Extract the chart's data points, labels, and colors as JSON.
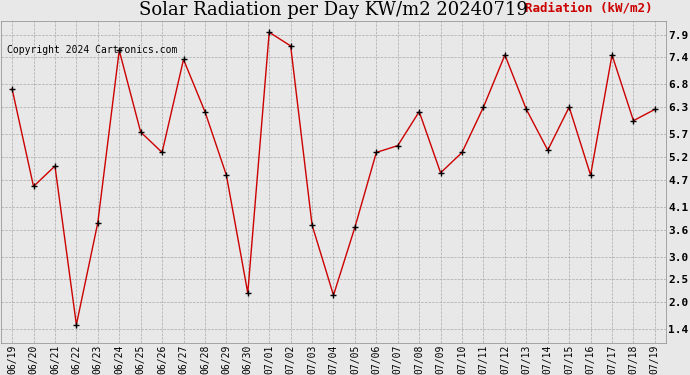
{
  "title": "Solar Radiation per Day KW/m2 20240719",
  "copyright": "Copyright 2024 Cartronics.com",
  "legend_label": "Radiation (kW/m2)",
  "dates": [
    "06/19",
    "06/20",
    "06/21",
    "06/22",
    "06/23",
    "06/24",
    "06/25",
    "06/26",
    "06/27",
    "06/28",
    "06/29",
    "06/30",
    "07/01",
    "07/02",
    "07/03",
    "07/04",
    "07/05",
    "07/06",
    "07/07",
    "07/08",
    "07/09",
    "07/10",
    "07/11",
    "07/12",
    "07/13",
    "07/14",
    "07/15",
    "07/16",
    "07/17",
    "07/18",
    "07/19"
  ],
  "values": [
    6.7,
    4.55,
    5.0,
    1.5,
    3.75,
    7.55,
    5.75,
    5.3,
    7.35,
    6.2,
    4.8,
    2.2,
    7.95,
    7.65,
    3.7,
    2.15,
    3.65,
    5.3,
    5.45,
    6.2,
    4.85,
    5.3,
    6.3,
    7.45,
    6.25,
    5.35,
    6.3,
    4.8,
    7.45,
    6.0,
    6.25
  ],
  "line_color": "#cc0000",
  "marker_color": "#000000",
  "background_color": "#e8e8e8",
  "grid_color": "#aaaaaa",
  "title_fontsize": 13,
  "copyright_fontsize": 7,
  "legend_fontsize": 9,
  "tick_fontsize": 7,
  "ylim": [
    1.1,
    8.2
  ],
  "yticks": [
    1.4,
    2.0,
    2.5,
    3.0,
    3.6,
    4.1,
    4.7,
    5.2,
    5.7,
    6.3,
    6.8,
    7.4,
    7.9
  ]
}
